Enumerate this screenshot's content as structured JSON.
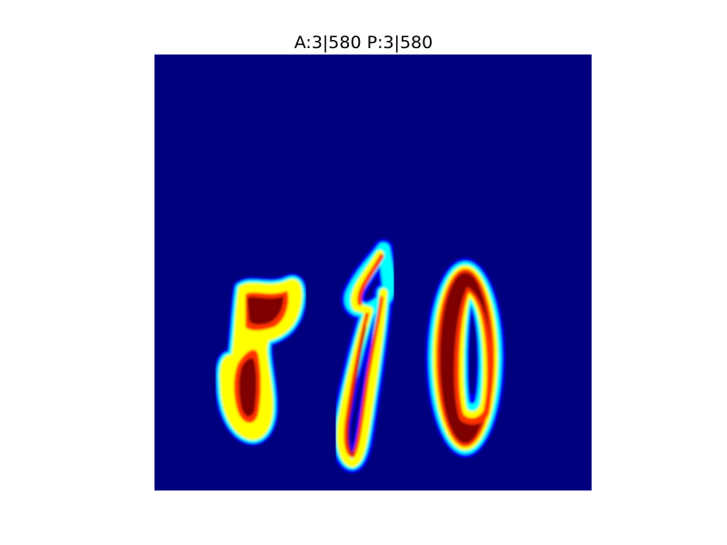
{
  "figure": {
    "title": "A:3|580 P:3|580",
    "colormap": "jet",
    "background_color": "#00007f",
    "hot_color": "#7f0000",
    "image_content": {
      "digits": [
        "5",
        "8",
        "0"
      ]
    }
  }
}
